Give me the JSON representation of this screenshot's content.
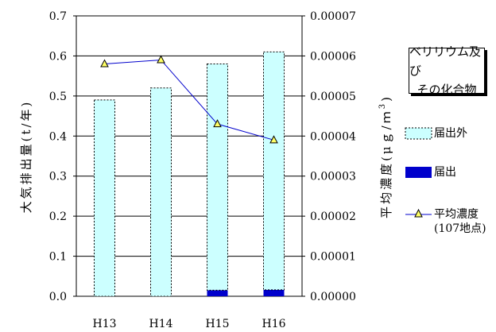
{
  "chart_data": {
    "type": "bar",
    "title_lines": [
      "ベリリウム及び",
      "その化合物"
    ],
    "categories": [
      "H13",
      "H14",
      "H15",
      "H16"
    ],
    "series": [
      {
        "name": "届出外",
        "kind": "bar",
        "stack": "total",
        "values": [
          0.49,
          0.52,
          0.565,
          0.594
        ],
        "color": "#ccffff"
      },
      {
        "name": "届出",
        "kind": "bar",
        "stack": "total",
        "values": [
          0.0,
          0.0,
          0.015,
          0.016
        ],
        "color": "#0000cc"
      },
      {
        "name": "平均濃度",
        "name_line2": "(107地点)",
        "kind": "line",
        "axis": "right",
        "values": [
          5.8e-05,
          5.9e-05,
          4.3e-05,
          3.9e-05
        ],
        "color": "#0000cc"
      }
    ],
    "ylabel": "大気排出量(t/年)",
    "y2label": "平均濃度(μg/m³)",
    "y2label_main": "平均濃度(μｇ/ｍ",
    "y2label_sup": "3",
    "y2label_close": ")",
    "ylim": [
      0,
      0.7
    ],
    "y2lim": [
      0,
      7e-05
    ],
    "yticks": [
      "0.0",
      "0.1",
      "0.2",
      "0.3",
      "0.4",
      "0.5",
      "0.6",
      "0.7"
    ],
    "y2ticks": [
      "0.00000",
      "0.00001",
      "0.00002",
      "0.00003",
      "0.00004",
      "0.00005",
      "0.00006",
      "0.00007"
    ],
    "grid": true,
    "legend_position": "right"
  }
}
